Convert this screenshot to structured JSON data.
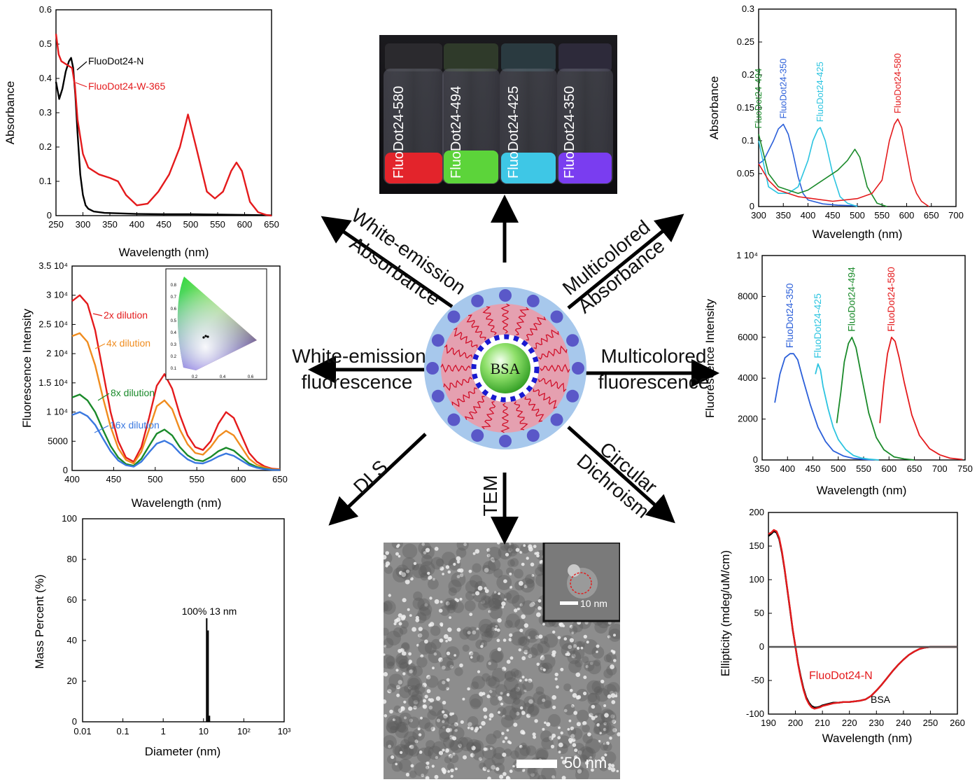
{
  "labels": {
    "white_emission_absorbance": [
      "White-emission",
      "Absorbance"
    ],
    "multicolored_absorbance": [
      "Multicolored",
      "Absorbance"
    ],
    "white_emission_fluorescence": [
      "White-emission",
      "fluorescence"
    ],
    "multicolored_fluorescence": [
      "Multicolored",
      "fluorescence"
    ],
    "dls": "DLS",
    "tem": "TEM",
    "circular_dichroism": [
      "Circular",
      "Dichroism"
    ],
    "core": "BSA"
  },
  "vials": [
    "FluoDot24-580",
    "FluoDot24-494",
    "FluoDot24-425",
    "FluoDot24-350"
  ],
  "tem": {
    "scale_main": "50 nm",
    "scale_inset": "10 nm"
  },
  "colors": {
    "red": "#e41a1c",
    "black": "#000000",
    "blue": "#2b5fd9",
    "cyan": "#2cc4e0",
    "green": "#1a8a2a",
    "orange": "#f08c1e",
    "lightblue": "#3a78e0"
  },
  "chart_data": [
    {
      "id": "abs_white",
      "type": "line",
      "xlabel": "Wavelength (nm)",
      "ylabel": "Absorbance",
      "xlim": [
        250,
        650
      ],
      "ylim": [
        0,
        0.6
      ],
      "xticks": [
        "250",
        "300",
        "350",
        "400",
        "450",
        "500",
        "550",
        "600",
        "650"
      ],
      "yticks": [
        "0",
        "0.1",
        "0.2",
        "0.3",
        "0.4",
        "0.5",
        "0.6"
      ],
      "series": [
        {
          "name": "FluoDot24-N",
          "color": "#000000",
          "x": [
            250,
            256,
            262,
            268,
            274,
            278,
            282,
            286,
            290,
            295,
            300,
            305,
            310,
            320,
            340,
            400,
            450,
            500,
            550,
            600,
            650
          ],
          "y": [
            0.39,
            0.34,
            0.37,
            0.42,
            0.45,
            0.46,
            0.43,
            0.35,
            0.24,
            0.12,
            0.06,
            0.03,
            0.02,
            0.012,
            0.008,
            0.005,
            0.004,
            0.004,
            0.003,
            0.002,
            0.001
          ]
        },
        {
          "name": "FluoDot24-W-365",
          "color": "#e41a1c",
          "x": [
            250,
            255,
            260,
            270,
            280,
            285,
            290,
            300,
            310,
            330,
            350,
            365,
            380,
            400,
            420,
            440,
            460,
            480,
            495,
            510,
            530,
            545,
            560,
            575,
            585,
            595,
            610,
            625,
            640,
            650
          ],
          "y": [
            0.53,
            0.47,
            0.45,
            0.44,
            0.43,
            0.38,
            0.28,
            0.18,
            0.14,
            0.12,
            0.11,
            0.1,
            0.06,
            0.03,
            0.035,
            0.07,
            0.12,
            0.2,
            0.295,
            0.2,
            0.07,
            0.05,
            0.07,
            0.13,
            0.155,
            0.13,
            0.04,
            0.01,
            0.002,
            0.0
          ]
        }
      ]
    },
    {
      "id": "abs_multi",
      "type": "line",
      "xlabel": "Wavelength (nm)",
      "ylabel": "Absorbance",
      "xlim": [
        300,
        700
      ],
      "ylim": [
        0,
        0.3
      ],
      "xticks": [
        "300",
        "350",
        "400",
        "450",
        "500",
        "550",
        "600",
        "650",
        "700"
      ],
      "yticks": [
        "0",
        "0.05",
        "0.1",
        "0.15",
        "0.2",
        "0.25",
        "0.3"
      ],
      "series": [
        {
          "name": "FluoDot24-350",
          "color": "#2b5fd9",
          "x": [
            300,
            310,
            320,
            330,
            340,
            350,
            360,
            370,
            380,
            390,
            400,
            430,
            460,
            500
          ],
          "y": [
            0.065,
            0.07,
            0.085,
            0.1,
            0.118,
            0.125,
            0.11,
            0.08,
            0.045,
            0.02,
            0.01,
            0.004,
            0.002,
            0.001
          ]
        },
        {
          "name": "FluoDot24-425",
          "color": "#2cc4e0",
          "x": [
            300,
            320,
            340,
            360,
            380,
            400,
            410,
            420,
            425,
            435,
            450,
            465,
            480,
            500
          ],
          "y": [
            0.1,
            0.03,
            0.02,
            0.02,
            0.03,
            0.07,
            0.1,
            0.117,
            0.12,
            0.1,
            0.05,
            0.015,
            0.005,
            0.0
          ]
        },
        {
          "name": "FluoDot24-494",
          "color": "#1a8a2a",
          "x": [
            300,
            320,
            340,
            360,
            380,
            400,
            420,
            440,
            460,
            480,
            495,
            505,
            520,
            540,
            560
          ],
          "y": [
            0.11,
            0.05,
            0.03,
            0.025,
            0.02,
            0.025,
            0.035,
            0.045,
            0.055,
            0.07,
            0.087,
            0.075,
            0.03,
            0.005,
            0.0
          ]
        },
        {
          "name": "FluoDot24-580",
          "color": "#e41a1c",
          "x": [
            300,
            320,
            340,
            360,
            380,
            400,
            450,
            500,
            530,
            550,
            565,
            575,
            582,
            590,
            600,
            610,
            620,
            630,
            645
          ],
          "y": [
            0.065,
            0.04,
            0.025,
            0.02,
            0.015,
            0.013,
            0.008,
            0.012,
            0.02,
            0.04,
            0.1,
            0.125,
            0.133,
            0.12,
            0.08,
            0.04,
            0.02,
            0.008,
            0.0
          ]
        }
      ]
    },
    {
      "id": "fl_white",
      "type": "line",
      "xlabel": "Wavelength (nm)",
      "ylabel": "Fluorescence Intensity",
      "xlim": [
        400,
        670
      ],
      "ylim": [
        0,
        35000
      ],
      "xticks": [
        "400",
        "450",
        "500",
        "550",
        "600",
        "650"
      ],
      "yticks": [
        "0",
        "5000",
        "1 10⁴",
        "1.5 10⁴",
        "2 10⁴",
        "2.5 10⁴",
        "3 10⁴",
        "3.5 10⁴"
      ],
      "series": [
        {
          "name": "2x dilution",
          "color": "#e41a1c",
          "x": [
            400,
            410,
            420,
            430,
            440,
            450,
            460,
            470,
            480,
            490,
            500,
            510,
            520,
            530,
            540,
            550,
            560,
            570,
            580,
            590,
            600,
            610,
            620,
            630,
            640,
            650,
            660,
            670
          ],
          "y": [
            29000,
            30000,
            28500,
            24000,
            17000,
            10000,
            5000,
            2200,
            1500,
            4000,
            9000,
            14500,
            16500,
            14000,
            9500,
            6000,
            4000,
            3500,
            5000,
            8000,
            10000,
            9000,
            6000,
            3000,
            1500,
            700,
            300,
            200
          ]
        },
        {
          "name": "4x dilution",
          "color": "#f08c1e",
          "x": [
            400,
            410,
            420,
            430,
            440,
            450,
            460,
            470,
            480,
            490,
            500,
            510,
            520,
            530,
            540,
            550,
            560,
            570,
            580,
            590,
            600,
            610,
            620,
            630,
            640,
            650,
            660,
            670
          ],
          "y": [
            23000,
            23500,
            22000,
            18000,
            12500,
            7500,
            3800,
            1800,
            1200,
            3200,
            7000,
            11000,
            12000,
            10500,
            7000,
            4500,
            3000,
            2700,
            4000,
            5800,
            6800,
            6000,
            4000,
            2000,
            1000,
            500,
            200,
            150
          ]
        },
        {
          "name": "8x dilution",
          "color": "#1a8a2a",
          "x": [
            400,
            410,
            420,
            430,
            440,
            450,
            460,
            470,
            480,
            490,
            500,
            510,
            520,
            530,
            540,
            550,
            560,
            570,
            580,
            590,
            600,
            610,
            620,
            630,
            640,
            650,
            660,
            670
          ],
          "y": [
            12500,
            13000,
            12000,
            10000,
            7000,
            4200,
            2200,
            1100,
            800,
            2000,
            4200,
            6300,
            7000,
            6000,
            4000,
            2600,
            1800,
            1600,
            2300,
            3300,
            3900,
            3400,
            2300,
            1200,
            600,
            300,
            120,
            100
          ]
        },
        {
          "name": "16x dilution",
          "color": "#3a78e0",
          "x": [
            400,
            410,
            420,
            430,
            440,
            450,
            460,
            470,
            480,
            490,
            500,
            510,
            520,
            530,
            540,
            550,
            560,
            570,
            580,
            590,
            600,
            610,
            620,
            630,
            640,
            650,
            660,
            670
          ],
          "y": [
            9500,
            10000,
            9300,
            7800,
            5500,
            3300,
            1700,
            900,
            650,
            1500,
            3100,
            4600,
            5100,
            4400,
            3000,
            1900,
            1300,
            1200,
            1700,
            2400,
            2900,
            2500,
            1700,
            900,
            450,
            220,
            100,
            80
          ]
        }
      ],
      "inset": {
        "xticks": [
          "0.2",
          "0.4",
          "0.6"
        ],
        "yticks": [
          "0.1",
          "0.2",
          "0.3",
          "0.4",
          "0.5",
          "0.6",
          "0.7",
          "0.8"
        ]
      }
    },
    {
      "id": "fl_multi",
      "type": "line",
      "xlabel": "Wavelength (nm)",
      "ylabel": "Fluorescence Intensity",
      "xlim": [
        350,
        750
      ],
      "ylim": [
        0,
        10000
      ],
      "xticks": [
        "350",
        "400",
        "450",
        "500",
        "550",
        "600",
        "650",
        "700",
        "750"
      ],
      "yticks": [
        "0",
        "2000",
        "4000",
        "6000",
        "8000",
        "1 10⁴"
      ],
      "series": [
        {
          "name": "FluoDot24-350",
          "color": "#2b5fd9",
          "x": [
            375,
            385,
            395,
            405,
            412,
            420,
            430,
            445,
            460,
            475,
            490,
            510,
            530,
            550,
            570
          ],
          "y": [
            2800,
            4200,
            5000,
            5200,
            5200,
            4900,
            4000,
            2700,
            1600,
            900,
            450,
            200,
            80,
            30,
            0
          ]
        },
        {
          "name": "FluoDot24-425",
          "color": "#2cc4e0",
          "x": [
            455,
            460,
            465,
            470,
            480,
            490,
            500,
            515,
            530,
            545,
            560,
            580
          ],
          "y": [
            4200,
            4700,
            4400,
            3600,
            2500,
            1600,
            1000,
            500,
            220,
            100,
            40,
            0
          ]
        },
        {
          "name": "FluoDot24-494",
          "color": "#1a8a2a",
          "x": [
            497,
            505,
            512,
            520,
            527,
            535,
            545,
            560,
            575,
            590,
            610,
            630,
            650
          ],
          "y": [
            1800,
            3300,
            4800,
            5700,
            6000,
            5500,
            4200,
            2300,
            1100,
            500,
            150,
            50,
            0
          ]
        },
        {
          "name": "FluoDot24-580",
          "color": "#e41a1c",
          "x": [
            582,
            590,
            597,
            605,
            612,
            620,
            630,
            645,
            660,
            680,
            700,
            720,
            745
          ],
          "y": [
            1800,
            3800,
            5200,
            6000,
            5800,
            5000,
            3800,
            2200,
            1200,
            550,
            250,
            90,
            20
          ]
        }
      ]
    },
    {
      "id": "dls",
      "type": "bar",
      "xlabel": "Diameter (nm)",
      "ylabel": "Mass Percent (%)",
      "ylim": [
        0,
        100
      ],
      "xticks": [
        "0.01",
        "0.1",
        "1",
        "10",
        "10²",
        "10³"
      ],
      "yticks": [
        "0",
        "20",
        "40",
        "60",
        "80",
        "100"
      ],
      "x": [
        12,
        13,
        14
      ],
      "values": [
        51,
        45,
        3
      ],
      "annotation": "100% 13 nm"
    },
    {
      "id": "cd",
      "type": "line",
      "xlabel": "Wavelength (nm)",
      "ylabel": "Ellipticity (mdeg/uM/cm)",
      "xlim": [
        190,
        260
      ],
      "ylim": [
        -100,
        200
      ],
      "xticks": [
        "190",
        "200",
        "210",
        "220",
        "230",
        "240",
        "250",
        "260"
      ],
      "yticks": [
        "-100",
        "-50",
        "0",
        "50",
        "100",
        "150",
        "200"
      ],
      "series": [
        {
          "name": "BSA",
          "color": "#000000",
          "x": [
            190,
            191,
            192,
            193,
            194,
            195,
            196,
            197,
            198,
            199,
            200,
            201,
            202,
            203,
            204,
            205,
            206,
            207,
            208,
            209,
            210,
            212,
            214,
            216,
            218,
            220,
            222,
            224,
            226,
            228,
            230,
            232,
            234,
            236,
            238,
            240,
            242,
            244,
            246,
            248,
            250,
            255,
            260
          ],
          "y": [
            165,
            168,
            172,
            170,
            160,
            140,
            115,
            85,
            55,
            25,
            0,
            -25,
            -45,
            -62,
            -75,
            -83,
            -88,
            -90,
            -90,
            -89,
            -87,
            -85,
            -83,
            -83,
            -82,
            -82,
            -81,
            -80,
            -78,
            -73,
            -65,
            -56,
            -46,
            -36,
            -27,
            -19,
            -12,
            -7,
            -3,
            -1,
            0,
            0,
            0
          ]
        },
        {
          "name": "FluoDot24-N",
          "color": "#e41a1c",
          "x": [
            190,
            191,
            192,
            193,
            194,
            195,
            196,
            197,
            198,
            199,
            200,
            201,
            202,
            203,
            204,
            205,
            206,
            207,
            208,
            209,
            210,
            212,
            214,
            216,
            218,
            220,
            222,
            224,
            226,
            228,
            230,
            232,
            234,
            236,
            238,
            240,
            242,
            244,
            246,
            248,
            250,
            255,
            260
          ],
          "y": [
            168,
            170,
            174,
            172,
            162,
            142,
            116,
            86,
            56,
            26,
            0,
            -26,
            -47,
            -64,
            -77,
            -85,
            -90,
            -92,
            -91,
            -90,
            -88,
            -86,
            -84,
            -83,
            -82,
            -82,
            -81,
            -80,
            -78,
            -73,
            -65,
            -56,
            -46,
            -36,
            -27,
            -19,
            -12,
            -7,
            -3,
            -1,
            0,
            0,
            0
          ]
        },
        {
          "name": "",
          "color": "#555555",
          "x": [
            190,
            260
          ],
          "y": [
            0,
            0
          ]
        }
      ]
    }
  ]
}
